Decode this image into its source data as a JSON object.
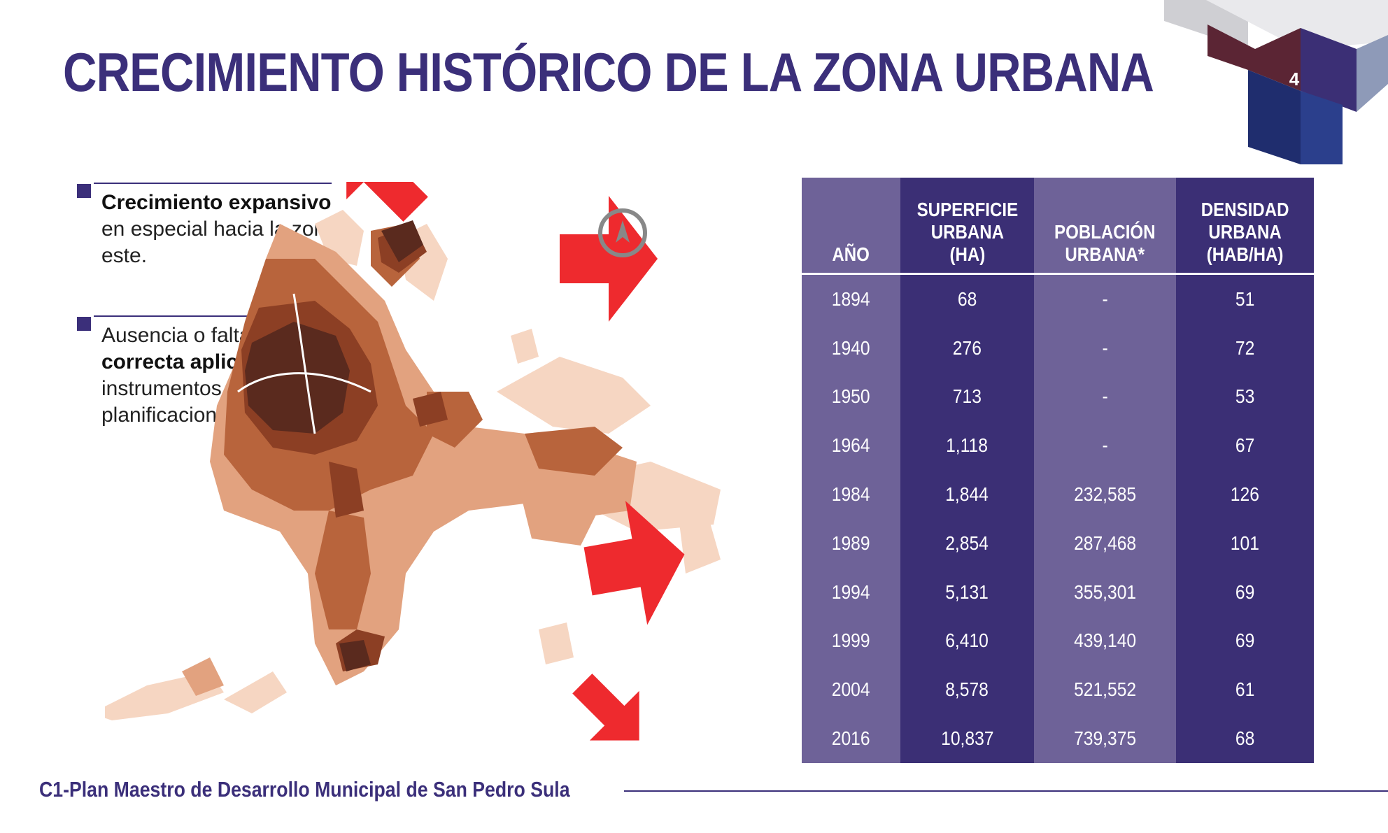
{
  "title": "CRECIMIENTO HISTÓRICO DE LA ZONA URBANA",
  "page_number": "4",
  "bullets": [
    {
      "bold": "Crecimiento expansivo",
      "pre": "",
      "post": " en especial hacia la zona este."
    },
    {
      "pre": "Ausencia o falta de ",
      "bold": "correcta aplicación",
      "post": " de instrumentos de planificacion urbana"
    }
  ],
  "table": {
    "headers": [
      "AÑO",
      "SUPERFICIE URBANA (HA)",
      "POBLACIÓN URBANA*",
      "DENSIDAD URBANA (HAB/HA)"
    ],
    "rows": [
      [
        "1894",
        "68",
        "-",
        "51"
      ],
      [
        "1940",
        "276",
        "-",
        "72"
      ],
      [
        "1950",
        "713",
        "-",
        "53"
      ],
      [
        "1964",
        "1,118",
        "-",
        "67"
      ],
      [
        "1984",
        "1,844",
        "232,585",
        "126"
      ],
      [
        "1989",
        "2,854",
        "287,468",
        "101"
      ],
      [
        "1994",
        "5,131",
        "355,301",
        "69"
      ],
      [
        "1999",
        "6,410",
        "439,140",
        "69"
      ],
      [
        "2004",
        "8,578",
        "521,552",
        "61"
      ],
      [
        "2016",
        "10,837",
        "739,375",
        "68"
      ]
    ]
  },
  "map": {
    "north_symbol": "north-arrow-icon",
    "growth_arrows": 4,
    "colors": {
      "oldest": "#5a2a1e",
      "older": "#8c3f24",
      "mid": "#b8643c",
      "recent": "#e2a27f",
      "newest": "#f6d6c2",
      "arrow": "#ee2a2e"
    }
  },
  "footer": "C1-Plan Maestro de Desarrollo Municipal de San Pedro Sula",
  "colors": {
    "accent": "#3b2f7a",
    "table_light": "#6e6298",
    "table_dark": "#3b2f75"
  }
}
